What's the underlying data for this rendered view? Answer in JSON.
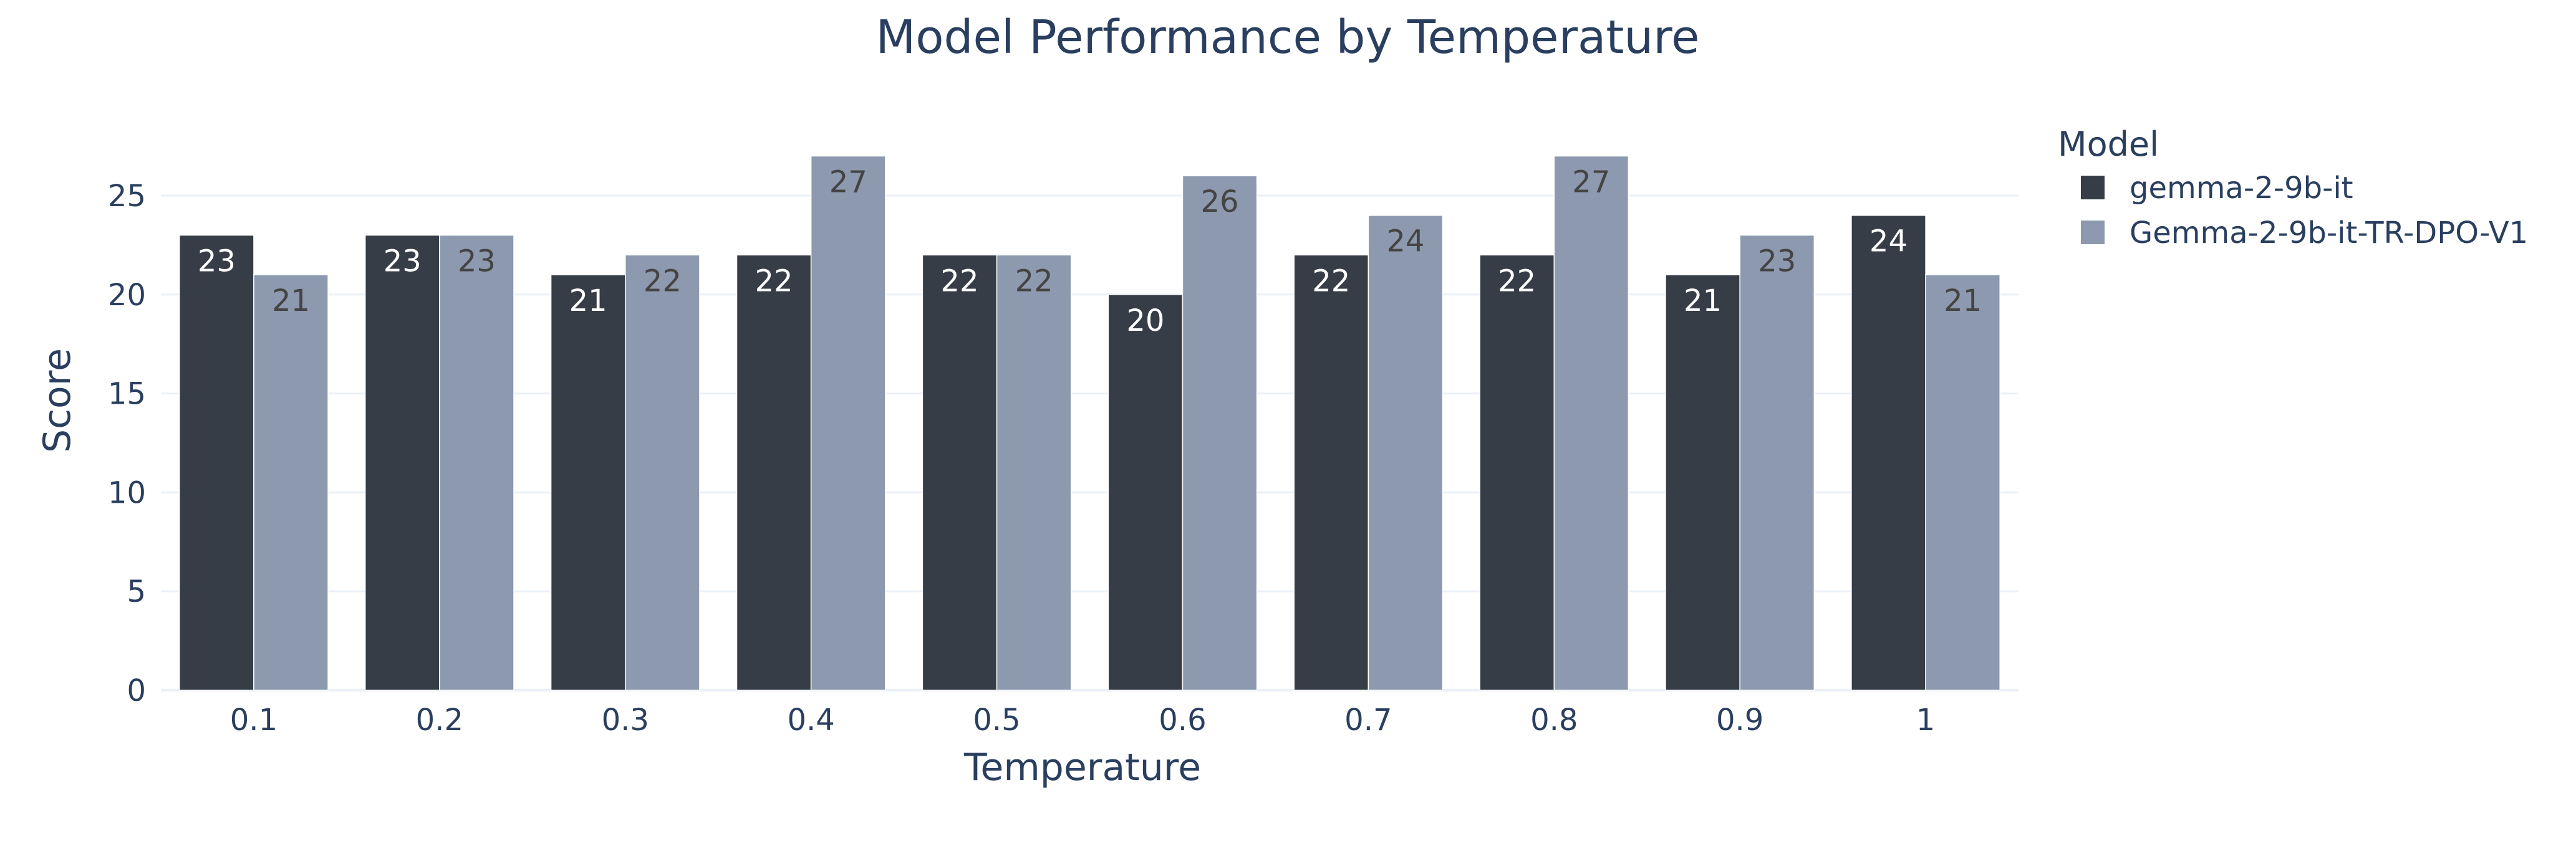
{
  "chart_data": {
    "type": "bar",
    "title": "Model Performance by Temperature",
    "xlabel": "Temperature",
    "ylabel": "Score",
    "categories": [
      "0.1",
      "0.2",
      "0.3",
      "0.4",
      "0.5",
      "0.6",
      "0.7",
      "0.8",
      "0.9",
      "1"
    ],
    "series": [
      {
        "name": "gemma-2-9b-it",
        "color": "#363d47",
        "label_color": "#ffffff",
        "values": [
          23,
          23,
          21,
          22,
          22,
          20,
          22,
          22,
          21,
          24
        ]
      },
      {
        "name": "Gemma-2-9b-it-TR-DPO-V1",
        "color": "#8c99ae",
        "label_color": "#444444",
        "values": [
          21,
          23,
          22,
          27,
          22,
          26,
          24,
          27,
          23,
          21
        ]
      }
    ],
    "ylim": [
      0,
      28.4
    ],
    "yticks": [
      0,
      5,
      10,
      15,
      20,
      25
    ],
    "grid": true,
    "legend": {
      "title": "Model",
      "placement": "right"
    }
  }
}
